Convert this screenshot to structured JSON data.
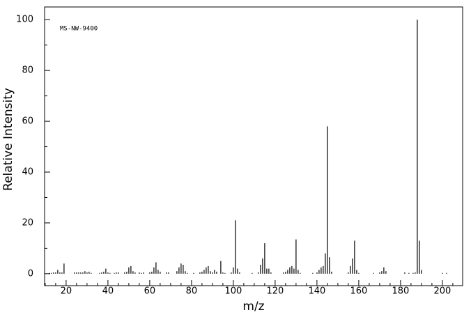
{
  "chart_data": {
    "type": "bar",
    "annotation": "MS-NW-9400",
    "x_label": "m/z",
    "y_label": "Relative Intensity",
    "color": "#000000",
    "x": [
      12,
      13,
      14,
      15,
      16,
      17,
      18,
      19,
      24,
      25,
      26,
      27,
      28,
      29,
      30,
      31,
      32,
      36,
      37,
      38,
      39,
      40,
      41,
      43,
      44,
      45,
      48,
      49,
      50,
      51,
      52,
      53,
      55,
      56,
      57,
      60,
      61,
      62,
      63,
      64,
      65,
      68,
      69,
      73,
      74,
      75,
      76,
      77,
      78,
      81,
      84,
      85,
      86,
      87,
      88,
      89,
      90,
      91,
      92,
      94,
      95,
      96,
      99,
      100,
      101,
      102,
      103,
      109,
      112,
      113,
      114,
      115,
      116,
      117,
      118,
      124,
      125,
      126,
      127,
      128,
      129,
      130,
      131,
      132,
      138,
      140,
      141,
      142,
      143,
      144,
      145,
      146,
      147,
      155,
      156,
      157,
      158,
      159,
      160,
      167,
      170,
      171,
      172,
      173,
      182,
      184,
      186,
      187,
      188,
      189,
      190,
      200,
      202
    ],
    "values": [
      0.3,
      0.3,
      0.5,
      0.5,
      1.5,
      0.5,
      0.5,
      4,
      0.5,
      0.5,
      0.5,
      0.5,
      0.5,
      1,
      0.5,
      0.8,
      0.3,
      0.3,
      0.5,
      0.8,
      2,
      0.5,
      0.3,
      0.3,
      0.5,
      0.5,
      0.5,
      0.8,
      2.5,
      3,
      1,
      0.5,
      0.5,
      0.3,
      0.5,
      0.5,
      0.8,
      2.5,
      4.5,
      1.5,
      0.8,
      0.5,
      0.5,
      1,
      2.5,
      4,
      3.5,
      1,
      0.3,
      0.3,
      0.5,
      0.8,
      1.5,
      2.5,
      3,
      1,
      0.5,
      1.5,
      0.8,
      5,
      0.5,
      0.3,
      0.5,
      2.5,
      21,
      2,
      0.5,
      0.3,
      0.5,
      3.5,
      6,
      12,
      2,
      2,
      0.5,
      0.5,
      0.8,
      1.5,
      2.5,
      3,
      2,
      13.5,
      1.5,
      0.3,
      0.3,
      0.5,
      1.5,
      2.5,
      3,
      8,
      58,
      6.5,
      0.8,
      0.5,
      3,
      6,
      13,
      1.5,
      0.3,
      0.3,
      0.5,
      1,
      2.5,
      1,
      0.5,
      0.3,
      0.3,
      0.5,
      100,
      13,
      1.5,
      0.3,
      0.3
    ],
    "xlim": [
      9.7,
      209.7
    ],
    "ylim": [
      -4.7,
      105
    ],
    "xticks": [
      20,
      40,
      60,
      80,
      100,
      120,
      140,
      160,
      180,
      200
    ],
    "xminorticks": [
      10,
      15,
      25,
      30,
      35,
      45,
      50,
      55,
      65,
      70,
      75,
      85,
      90,
      95,
      105,
      110,
      115,
      125,
      130,
      135,
      145,
      150,
      155,
      165,
      170,
      175,
      185,
      190,
      195,
      205
    ],
    "yticks": [
      0,
      20,
      40,
      60,
      80,
      100
    ],
    "yminorticks": [
      10,
      30,
      50,
      70,
      90
    ]
  }
}
